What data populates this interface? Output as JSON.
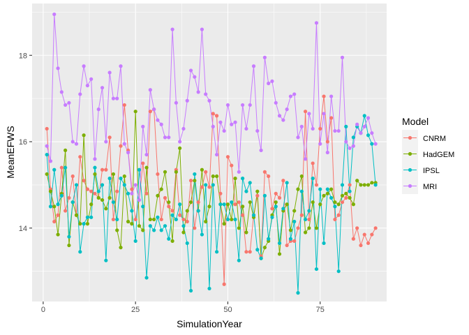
{
  "chart_data": {
    "type": "line",
    "xlabel": "SimulationYear",
    "ylabel": "MeanEFWS",
    "xlim": [
      -3,
      93
    ],
    "ylim": [
      12.3,
      19.2
    ],
    "xticks": [
      0,
      25,
      50,
      75
    ],
    "yticks": [
      14,
      16,
      18
    ],
    "grid": true,
    "legend": {
      "title": "Model",
      "position": "right"
    },
    "x": [
      1,
      2,
      3,
      4,
      5,
      6,
      7,
      8,
      9,
      10,
      11,
      12,
      13,
      14,
      15,
      16,
      17,
      18,
      19,
      20,
      21,
      22,
      23,
      24,
      25,
      26,
      27,
      28,
      29,
      30,
      31,
      32,
      33,
      34,
      35,
      36,
      37,
      38,
      39,
      40,
      41,
      42,
      43,
      44,
      45,
      46,
      47,
      48,
      49,
      50,
      51,
      52,
      53,
      54,
      55,
      56,
      57,
      58,
      59,
      60,
      61,
      62,
      63,
      64,
      65,
      66,
      67,
      68,
      69,
      70,
      71,
      72,
      73,
      74,
      75,
      76,
      77,
      78,
      79,
      80,
      81,
      82,
      83,
      84,
      85,
      86,
      87,
      88,
      89,
      90
    ],
    "series": [
      {
        "name": "CNRM",
        "color": "#F8766D",
        "values": [
          16.3,
          14.9,
          14.15,
          14.3,
          15.4,
          14.4,
          14.7,
          15.2,
          14.3,
          15.65,
          15.1,
          14.9,
          14.85,
          14.8,
          14.7,
          15.35,
          15.35,
          16.1,
          14.2,
          14.85,
          15.9,
          16.85,
          15.8,
          14.9,
          14.2,
          14.65,
          15.5,
          14.8,
          16.7,
          16.75,
          15.25,
          14.2,
          14.7,
          14.5,
          14.4,
          15.35,
          14.3,
          14.2,
          14.15,
          15.1,
          14.0,
          14.6,
          14.95,
          15.3,
          14.95,
          16.65,
          16.6,
          14.8,
          12.7,
          15.65,
          15.45,
          14.55,
          14.6,
          14.3,
          13.45,
          13.45,
          14.3,
          14.75,
          13.35,
          15.3,
          15.2,
          14.45,
          14.8,
          14.7,
          15.1,
          13.6,
          13.7,
          13.7,
          14.0,
          14.3,
          16.7,
          14.2,
          15.5,
          15.0,
          16.3,
          17.05,
          16.0,
          16.55,
          14.2,
          14.3,
          14.6,
          14.7,
          15.0,
          13.75,
          14.0,
          13.6,
          13.85,
          13.65,
          13.85,
          14.0
        ]
      },
      {
        "name": "HadGEM",
        "color": "#7CAE00",
        "values": [
          15.25,
          14.85,
          14.5,
          13.85,
          14.8,
          15.8,
          13.6,
          14.6,
          14.3,
          14.1,
          16.15,
          14.1,
          14.55,
          15.25,
          14.7,
          14.65,
          14.45,
          14.7,
          15.25,
          13.95,
          13.55,
          15.2,
          14.15,
          14.1,
          16.7,
          14.05,
          13.95,
          15.4,
          14.2,
          14.2,
          14.75,
          14.9,
          15.3,
          14.6,
          13.7,
          15.3,
          15.85,
          13.9,
          14.4,
          14.6,
          15.1,
          14.4,
          15.35,
          14.15,
          14.5,
          15.2,
          15.2,
          14.55,
          14.1,
          14.55,
          14.2,
          15.15,
          14.0,
          14.5,
          13.9,
          14.6,
          14.25,
          14.85,
          13.3,
          13.55,
          13.7,
          14.3,
          14.6,
          13.4,
          14.4,
          14.55,
          13.95,
          14.4,
          14.9,
          15.2,
          13.9,
          14.0,
          14.6,
          14.0,
          14.55,
          14.75,
          14.8,
          14.9,
          14.6,
          14.55,
          14.75,
          14.8,
          14.7,
          14.55,
          15.1,
          15.0,
          15.0,
          15.0,
          15.05,
          15.05
        ]
      },
      {
        "name": "IPSL",
        "color": "#00BFC4",
        "values": [
          15.7,
          14.5,
          15.35,
          14.55,
          14.75,
          15.4,
          13.8,
          14.6,
          15.0,
          13.45,
          14.1,
          14.25,
          14.25,
          15.4,
          14.85,
          15.0,
          13.25,
          15.15,
          14.6,
          14.2,
          15.15,
          15.0,
          14.8,
          14.4,
          13.7,
          15.35,
          14.5,
          12.85,
          14.05,
          13.95,
          14.25,
          13.95,
          14.05,
          13.75,
          14.3,
          14.2,
          14.55,
          14.05,
          13.65,
          12.55,
          15.25,
          14.4,
          13.85,
          15.0,
          12.6,
          15.0,
          13.45,
          14.55,
          14.55,
          14.2,
          14.6,
          14.2,
          13.25,
          15.15,
          14.85,
          15.05,
          14.3,
          13.5,
          13.3,
          14.75,
          13.75,
          14.25,
          14.5,
          13.65,
          14.45,
          15.05,
          13.75,
          14.15,
          12.5,
          14.85,
          14.2,
          14.4,
          15.15,
          13.05,
          14.9,
          13.65,
          14.9,
          14.7,
          14.5,
          13.0,
          15.0,
          16.35,
          14.85,
          16.1,
          16.35,
          16.2,
          16.6,
          16.15,
          15.95,
          15.0
        ]
      },
      {
        "name": "MRI",
        "color": "#C77CFF",
        "values": [
          15.9,
          15.55,
          18.95,
          17.7,
          17.15,
          16.85,
          16.9,
          16.0,
          15.95,
          17.1,
          17.75,
          17.3,
          17.45,
          15.6,
          16.75,
          17.25,
          16.0,
          17.6,
          17.0,
          17.0,
          17.75,
          15.95,
          15.75,
          14.8,
          15.0,
          14.65,
          16.35,
          15.7,
          17.2,
          16.75,
          16.5,
          16.4,
          16.1,
          16.1,
          18.6,
          16.9,
          16.0,
          16.3,
          16.95,
          17.65,
          17.5,
          17.15,
          18.6,
          17.1,
          16.95,
          16.35,
          15.7,
          16.45,
          16.25,
          16.85,
          16.4,
          16.45,
          15.3,
          16.85,
          16.3,
          16.85,
          17.75,
          16.25,
          15.8,
          17.95,
          17.35,
          17.4,
          16.9,
          16.6,
          16.5,
          16.75,
          17.05,
          17.1,
          16.1,
          16.35,
          15.6,
          16.65,
          16.3,
          18.75,
          15.95,
          16.65,
          15.75,
          17.05,
          16.25,
          16.25,
          17.95,
          16.0,
          15.85,
          15.9,
          16.4,
          16.2,
          16.35,
          16.55,
          16.2,
          15.95
        ]
      }
    ]
  }
}
